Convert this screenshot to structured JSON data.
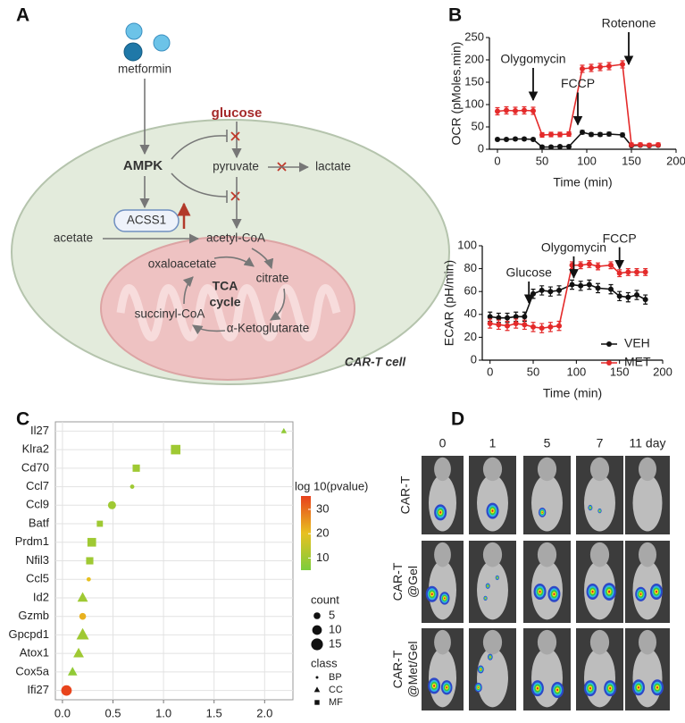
{
  "panel_labels": [
    "A",
    "B",
    "C",
    "D"
  ],
  "diagram": {
    "metformin": "metformin",
    "glucose": "glucose",
    "ampk": "AMPK",
    "pyruvate": "pyruvate",
    "lactate": "lactate",
    "acss1": "ACSS1",
    "acetate": "acetate",
    "acetyl_coa": "acetyl-CoA",
    "oxaloacetate": "oxaloacetate",
    "citrate": "citrate",
    "tca": [
      "TCA",
      "cycle"
    ],
    "succinyl_coa": "succinyl-CoA",
    "ketoglutarate": "α-Ketoglutarate",
    "cell": "CAR-T cell"
  },
  "chart_data": [
    {
      "type": "line",
      "y_label": "OCR (pMoles.min)",
      "x_label": "Time (min)",
      "x": [
        0,
        10,
        20,
        30,
        40,
        50,
        60,
        70,
        80,
        95,
        105,
        115,
        125,
        140,
        150,
        160,
        170,
        180
      ],
      "xlim": [
        -9,
        200
      ],
      "xticks": [
        0,
        50,
        100,
        150,
        200
      ],
      "ylim": [
        0,
        250
      ],
      "yticks": [
        0,
        50,
        100,
        150,
        200,
        250
      ],
      "series": [
        {
          "color": "#111111",
          "values": [
            22,
            22,
            23,
            23,
            22,
            5,
            5,
            6,
            6,
            38,
            33,
            33,
            34,
            32,
            8,
            9,
            8,
            9
          ],
          "errors": [
            3,
            3,
            3,
            3,
            3,
            3,
            3,
            3,
            3,
            4,
            4,
            4,
            4,
            4,
            3,
            3,
            3,
            3
          ]
        },
        {
          "color": "#e42a2a",
          "values": [
            85,
            87,
            86,
            87,
            86,
            32,
            33,
            33,
            34,
            180,
            182,
            184,
            186,
            190,
            10,
            10,
            9,
            10
          ],
          "errors": [
            8,
            8,
            8,
            8,
            8,
            5,
            5,
            5,
            5,
            8,
            8,
            8,
            8,
            8,
            4,
            4,
            4,
            4
          ]
        }
      ],
      "annotations": [
        {
          "text": "Olygomycin",
          "x": 40,
          "y": 110
        },
        {
          "text": "FCCP",
          "x": 90,
          "y": 55
        },
        {
          "text": "Rotenone",
          "x": 147,
          "y": 190
        }
      ]
    },
    {
      "type": "line",
      "y_label": "ECAR (pH/min)",
      "x_label": "Time (min)",
      "x": [
        0,
        10,
        20,
        30,
        40,
        50,
        60,
        70,
        80,
        95,
        105,
        115,
        125,
        140,
        150,
        160,
        170,
        180
      ],
      "xlim": [
        -9,
        200
      ],
      "xticks": [
        0,
        50,
        100,
        150,
        200
      ],
      "ylim": [
        0,
        100
      ],
      "yticks": [
        0,
        20,
        40,
        60,
        80,
        100
      ],
      "series": [
        {
          "name": "VEH",
          "color": "#111111",
          "values": [
            38,
            37,
            37,
            38,
            38,
            58,
            61,
            60,
            61,
            66,
            65,
            66,
            63,
            62,
            56,
            55,
            57,
            53
          ],
          "errors": [
            4,
            4,
            4,
            4,
            4,
            4,
            4,
            4,
            4,
            4,
            4,
            4,
            4,
            4,
            4,
            4,
            4,
            4
          ]
        },
        {
          "name": "MET",
          "color": "#e42a2a",
          "values": [
            32,
            31,
            30,
            32,
            31,
            29,
            28,
            29,
            30,
            83,
            83,
            84,
            82,
            83,
            76,
            77,
            77,
            77
          ],
          "errors": [
            4,
            4,
            4,
            4,
            4,
            4,
            4,
            4,
            4,
            3,
            3,
            3,
            3,
            3,
            3,
            3,
            3,
            3
          ]
        }
      ],
      "annotations": [
        {
          "text": "Glucose",
          "x": 45,
          "y": 50
        },
        {
          "text": "Olygomycin",
          "x": 97,
          "y": 72
        },
        {
          "text": "FCCP",
          "x": 150,
          "y": 80
        }
      ],
      "legend": "lower right"
    },
    {
      "type": "scatter",
      "categories": [
        "Il27",
        "Klra2",
        "Cd70",
        "Ccl7",
        "Ccl9",
        "Batf",
        "Prdm1",
        "Nfil3",
        "Ccl5",
        "Id2",
        "Gzmb",
        "Gpcpd1",
        "Atox1",
        "Cox5a",
        "Ifi27"
      ],
      "values": [
        2.19,
        1.12,
        0.73,
        0.69,
        0.49,
        0.37,
        0.29,
        0.27,
        0.26,
        0.2,
        0.2,
        0.2,
        0.16,
        0.1,
        0.04
      ],
      "counts": [
        3,
        12,
        7,
        2,
        7,
        5,
        10,
        7,
        2,
        10,
        5,
        14,
        10,
        8,
        12
      ],
      "log10_pvalue": [
        8,
        10,
        10,
        10,
        10,
        10,
        10,
        10,
        20,
        10,
        22,
        10,
        10,
        8,
        35
      ],
      "classes": [
        "CC",
        "MF",
        "MF",
        "BP",
        "BP",
        "MF",
        "MF",
        "MF",
        "BP",
        "CC",
        "BP",
        "CC",
        "CC",
        "CC",
        "BP"
      ],
      "xlim": [
        -0.07,
        2.28
      ],
      "xticks": [
        {
          "value": 0,
          "label": "0.0"
        },
        0.5,
        {
          "value": 1,
          "label": "1.0"
        },
        1.5,
        {
          "value": 2,
          "label": "2.0"
        }
      ],
      "grid": true,
      "colorbar": {
        "title": "log 10(pvalue)",
        "lim": [
          5,
          35.5
        ],
        "ticks": [
          10,
          20,
          30
        ],
        "colors": [
          "#7ccd3c",
          "#e8c020",
          "#e8401c"
        ]
      },
      "size_legend": {
        "title": "count",
        "values": [
          5,
          10,
          15
        ]
      },
      "shape_legend": {
        "title": "class",
        "classes": [
          "BP",
          "CC",
          "MF"
        ]
      }
    }
  ],
  "imaging": {
    "columns": [
      "0",
      "1",
      "5",
      "7",
      "11 day"
    ],
    "rows": [
      [
        "CAR-T"
      ],
      [
        "CAR-T",
        "@Gel"
      ],
      [
        "CAR-T",
        "@Met/Gel"
      ]
    ]
  }
}
